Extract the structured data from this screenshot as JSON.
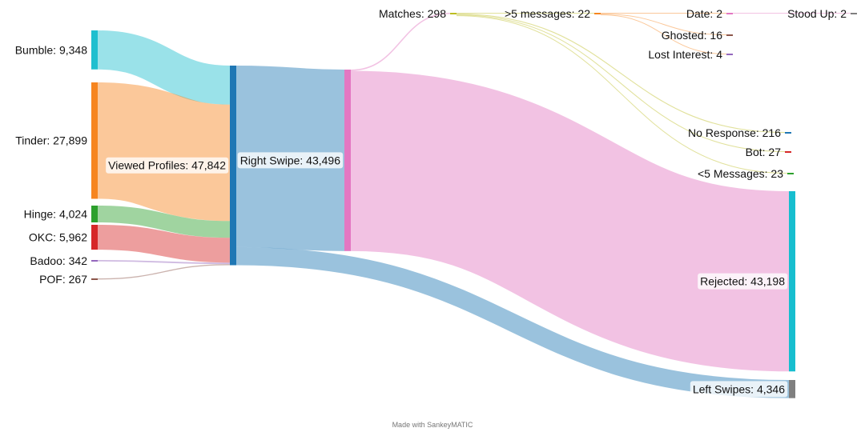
{
  "chart_data": {
    "type": "sankey",
    "credit": "Made with SankeyMATIC",
    "nodes": [
      {
        "id": "bumble",
        "label": "Bumble: 9,348",
        "value": 9348,
        "color": "#1fbfcf"
      },
      {
        "id": "tinder",
        "label": "Tinder: 27,899",
        "value": 27899,
        "color": "#f6851f"
      },
      {
        "id": "hinge",
        "label": "Hinge: 4,024",
        "value": 4024,
        "color": "#2ca02c"
      },
      {
        "id": "okc",
        "label": "OKC: 5,962",
        "value": 5962,
        "color": "#d62728"
      },
      {
        "id": "badoo",
        "label": "Badoo: 342",
        "value": 342,
        "color": "#9467bd"
      },
      {
        "id": "pof",
        "label": "POF: 267",
        "value": 267,
        "color": "#8c564b"
      },
      {
        "id": "viewed",
        "label": "Viewed Profiles: 47,842",
        "value": 47842,
        "color": "#1f77b4"
      },
      {
        "id": "right",
        "label": "Right Swipe: 43,496",
        "value": 43496,
        "color": "#e377c2"
      },
      {
        "id": "matches",
        "label": "Matches: 298",
        "value": 298,
        "color": "#bcbd22"
      },
      {
        "id": "rejected",
        "label": "Rejected: 43,198",
        "value": 43198,
        "color": "#17becf"
      },
      {
        "id": "left",
        "label": "Left Swipes: 4,346",
        "value": 4346,
        "color": "#7f7f7f"
      },
      {
        "id": "gt5",
        "label": ">5 messages: 22",
        "value": 22,
        "color": "#f6851f"
      },
      {
        "id": "noresp",
        "label": "No Response: 216",
        "value": 216,
        "color": "#1f77b4"
      },
      {
        "id": "bot",
        "label": "Bot: 27",
        "value": 27,
        "color": "#d62728"
      },
      {
        "id": "lt5",
        "label": "<5 Messages: 23",
        "value": 23,
        "color": "#2ca02c"
      },
      {
        "id": "date",
        "label": "Date: 2",
        "value": 2,
        "color": "#e377c2"
      },
      {
        "id": "ghosted",
        "label": "Ghosted: 16",
        "value": 16,
        "color": "#8c564b"
      },
      {
        "id": "lostint",
        "label": "Lost Interest: 4",
        "value": 4,
        "color": "#9467bd"
      },
      {
        "id": "stoodup",
        "label": "Stood Up: 2",
        "value": 2,
        "color": "#7f7f7f"
      }
    ],
    "links": [
      {
        "source": "bumble",
        "target": "viewed",
        "value": 9348
      },
      {
        "source": "tinder",
        "target": "viewed",
        "value": 27899
      },
      {
        "source": "hinge",
        "target": "viewed",
        "value": 4024
      },
      {
        "source": "okc",
        "target": "viewed",
        "value": 5962
      },
      {
        "source": "badoo",
        "target": "viewed",
        "value": 342
      },
      {
        "source": "pof",
        "target": "viewed",
        "value": 267
      },
      {
        "source": "viewed",
        "target": "right",
        "value": 43496
      },
      {
        "source": "viewed",
        "target": "left",
        "value": 4346
      },
      {
        "source": "right",
        "target": "matches",
        "value": 298
      },
      {
        "source": "right",
        "target": "rejected",
        "value": 43198
      },
      {
        "source": "matches",
        "target": "gt5",
        "value": 22
      },
      {
        "source": "matches",
        "target": "noresp",
        "value": 216
      },
      {
        "source": "matches",
        "target": "bot",
        "value": 27
      },
      {
        "source": "matches",
        "target": "lt5",
        "value": 23
      },
      {
        "source": "gt5",
        "target": "date",
        "value": 2
      },
      {
        "source": "gt5",
        "target": "ghosted",
        "value": 16
      },
      {
        "source": "gt5",
        "target": "lostint",
        "value": 4
      },
      {
        "source": "date",
        "target": "stoodup",
        "value": 2
      }
    ]
  }
}
